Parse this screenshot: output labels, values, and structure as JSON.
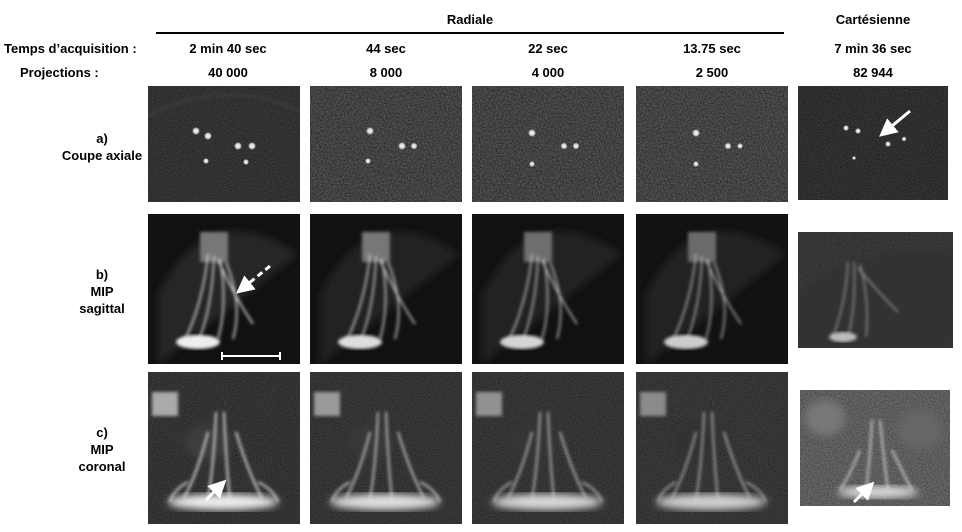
{
  "header": {
    "group_radial": "Radiale",
    "group_cartesian": "Cartésienne",
    "row_time_label": "Temps d’acquisition :",
    "row_proj_label": "Projections :",
    "columns": [
      {
        "time": "2 min 40 sec",
        "projections": "40 000"
      },
      {
        "time": "44 sec",
        "projections": "8 000"
      },
      {
        "time": "22 sec",
        "projections": "4 000"
      },
      {
        "time": "13.75 sec",
        "projections": "2 500"
      },
      {
        "time": "7 min 36 sec",
        "projections": "82 944"
      }
    ]
  },
  "rows": [
    {
      "letter": "a)",
      "line1": "Coupe axiale",
      "line2": ""
    },
    {
      "letter": "b)",
      "line1": "MIP",
      "line2": "sagittal"
    },
    {
      "letter": "c)",
      "line1": "MIP",
      "line2": "coronal"
    }
  ],
  "colors": {
    "background": "#ffffff",
    "image_bg": "#0a0a0a",
    "vessel": "#e8e8e8",
    "arrow": "#ffffff"
  }
}
